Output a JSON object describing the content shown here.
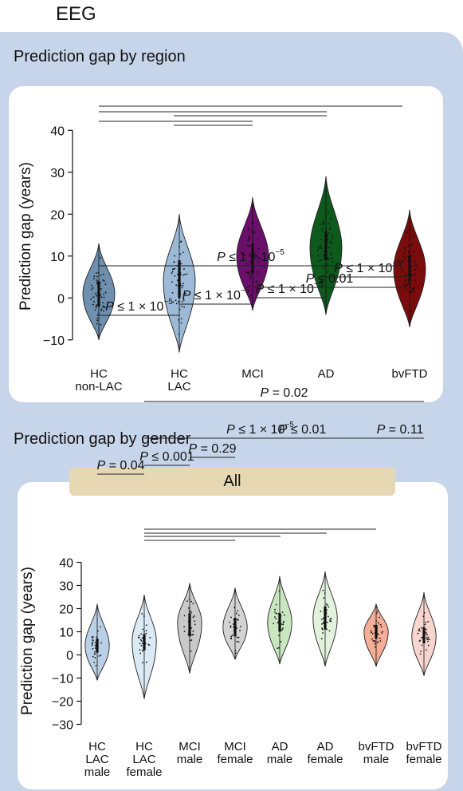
{
  "heading": "EEG",
  "section1_title": "Prediction gap by region",
  "section2_title": "Prediction gap by gender",
  "pill_label": "All",
  "chart_data": [
    {
      "type": "violin",
      "ylabel": "Prediction gap (years)",
      "ylim": [
        -12,
        42
      ],
      "yticks": [
        -10,
        0,
        10,
        20,
        30,
        40
      ],
      "categories": [
        [
          "HC",
          "non-LAC"
        ],
        [
          "HC",
          "LAC"
        ],
        [
          "MCI"
        ],
        [
          "AD"
        ],
        [
          "bvFTD"
        ]
      ],
      "colors": [
        "#6e8fae",
        "#9cbad6",
        "#6a0f6a",
        "#0e5a1c",
        "#7a0c0c"
      ],
      "distributions": [
        {
          "min": -10,
          "max": 13,
          "median": 1,
          "q1": -2,
          "q3": 4
        },
        {
          "min": -13,
          "max": 20,
          "median": 4,
          "q1": 0,
          "q3": 9
        },
        {
          "min": -3,
          "max": 24,
          "median": 10,
          "q1": 6,
          "q3": 13
        },
        {
          "min": -4,
          "max": 29,
          "median": 12,
          "q1": 9,
          "q3": 16
        },
        {
          "min": -7,
          "max": 21,
          "median": 7,
          "q1": 4,
          "q3": 10
        }
      ],
      "comparisons": [
        {
          "label": "P ≤ 1 × 10",
          "exp": "−5",
          "from": 0,
          "to": 1
        },
        {
          "label": "P ≤ 1 × 10",
          "exp": "−5",
          "from": 1,
          "to": 2
        },
        {
          "label": "P ≤ 1 × 10",
          "exp": "−5",
          "from": 2,
          "to": 3
        },
        {
          "label": "P ≤ 0.01",
          "exp": "",
          "from": 2,
          "to": 4
        },
        {
          "label": "P ≤ 1 × 10",
          "exp": "−5",
          "from": 3,
          "to": 4
        },
        {
          "label": "P ≤ 1 × 10",
          "exp": "−5",
          "from": 0,
          "to": 4
        }
      ]
    },
    {
      "type": "violin",
      "ylabel": "Prediction gap (years)",
      "ylim": [
        -30,
        42
      ],
      "yticks": [
        -30,
        -20,
        -10,
        0,
        10,
        20,
        30,
        40
      ],
      "categories": [
        [
          "HC",
          "LAC",
          "male"
        ],
        [
          "HC",
          "LAC",
          "female"
        ],
        [
          "MCI",
          "male"
        ],
        [
          "MCI",
          "female"
        ],
        [
          "AD",
          "male"
        ],
        [
          "AD",
          "female"
        ],
        [
          "bvFTD",
          "male"
        ],
        [
          "bvFTD",
          "female"
        ]
      ],
      "colors": [
        "#b9d0e6",
        "#dbeaf5",
        "#c9c9c9",
        "#d3d3d3",
        "#c8e6c0",
        "#e2f2dc",
        "#f4ad96",
        "#f8d6d0"
      ],
      "distributions": [
        {
          "min": -11,
          "max": 22,
          "median": 4,
          "q1": 1,
          "q3": 7
        },
        {
          "min": -19,
          "max": 26,
          "median": 6,
          "q1": 2,
          "q3": 9
        },
        {
          "min": -8,
          "max": 31,
          "median": 14,
          "q1": 8,
          "q3": 18
        },
        {
          "min": -2,
          "max": 29,
          "median": 12,
          "q1": 8,
          "q3": 16
        },
        {
          "min": -4,
          "max": 34,
          "median": 14,
          "q1": 10,
          "q3": 18
        },
        {
          "min": -5,
          "max": 36,
          "median": 16,
          "q1": 11,
          "q3": 21
        },
        {
          "min": -5,
          "max": 22,
          "median": 10,
          "q1": 7,
          "q3": 13
        },
        {
          "min": -9,
          "max": 27,
          "median": 8,
          "q1": 5,
          "q3": 12
        }
      ],
      "comparisons": [
        {
          "label": "P = 0.04",
          "exp": "",
          "from": 0,
          "to": 1
        },
        {
          "label": "P ≤ 0.001",
          "exp": "",
          "from": 1,
          "to": 2
        },
        {
          "label": "P = 0.29",
          "exp": "",
          "from": 2,
          "to": 3
        },
        {
          "label": "P ≤ 0.01",
          "exp": "",
          "from": 4,
          "to": 5
        },
        {
          "label": "P = 0.11",
          "exp": "",
          "from": 6,
          "to": 7
        },
        {
          "label": "P ≤ 1 × 10",
          "exp": "−5",
          "from": 1,
          "to": 6
        },
        {
          "label": "P = 0.02",
          "exp": "",
          "from": 1,
          "to": 7
        }
      ]
    }
  ]
}
